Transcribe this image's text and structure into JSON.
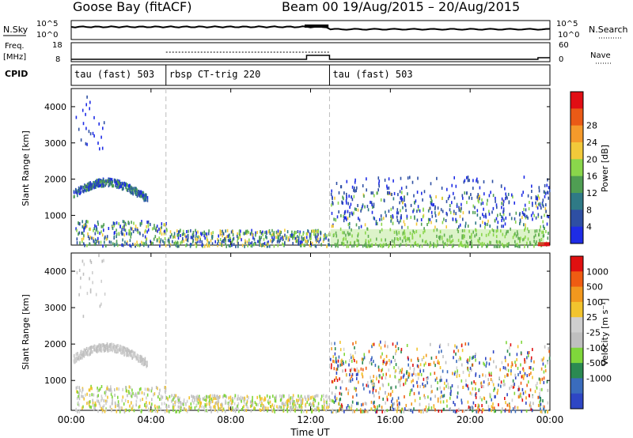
{
  "header": {
    "title": "Goose Bay (fitACF)",
    "beam_date": "Beam 00  19/Aug/2015 – 20/Aug/2015"
  },
  "top_panels": {
    "nsky_label": "N.Sky",
    "nsky_ticks": [
      "10^5",
      "10^0"
    ],
    "nsky_right_ticks": [
      "10^5",
      "10^0"
    ],
    "nsearch_label": "N.Search",
    "freq_label_1": "Freq.",
    "freq_label_2": "[MHz]",
    "freq_ticks": [
      "18",
      "8"
    ],
    "nave_ticks": [
      "60",
      "0"
    ],
    "nave_label": "Nave",
    "cpid_label": "CPID",
    "cpid_segments": [
      {
        "label": "tau (fast) 503",
        "start_hour": 0.0
      },
      {
        "label": "rbsp CT-trig 220",
        "start_hour": 4.75
      },
      {
        "label": "tau (fast) 503",
        "start_hour": 12.95
      }
    ]
  },
  "colors": {
    "power_scale": [
      "#1e2ce6",
      "#2e4fa3",
      "#2f7a86",
      "#4f9e53",
      "#8ad64b",
      "#f2c93a",
      "#f59a2b",
      "#ea5a16",
      "#e10e14"
    ],
    "velocity_scale": [
      "#2e46c4",
      "#3a6cbd",
      "#2b8a52",
      "#7fd63b",
      "#bfbfbf",
      "#cfcfcf",
      "#f2c42e",
      "#f2981e",
      "#ef5c12",
      "#e01010"
    ]
  },
  "chart_data": [
    {
      "type": "heatmap",
      "name": "power",
      "xlabel": "",
      "ylabel": "Slant Range [km]",
      "xlim": [
        0,
        24
      ],
      "ylim": [
        180,
        4500
      ],
      "x_ticks": [
        "00:00",
        "04:00",
        "08:00",
        "12:00",
        "16:00",
        "20:00",
        "00:00"
      ],
      "y_ticks": [
        1000,
        2000,
        3000,
        4000
      ],
      "colorbar_label": "Power [dB]",
      "colorbar_ticks": [
        "4",
        "8",
        "12",
        "16",
        "20",
        "24",
        "28"
      ]
    },
    {
      "type": "heatmap",
      "name": "velocity",
      "xlabel": "Time UT",
      "ylabel": "Slant Range [km]",
      "xlim": [
        0,
        24
      ],
      "ylim": [
        180,
        4500
      ],
      "x_ticks": [
        "00:00",
        "04:00",
        "08:00",
        "12:00",
        "16:00",
        "20:00",
        "00:00"
      ],
      "y_ticks": [
        1000,
        2000,
        3000,
        4000
      ],
      "colorbar_label": "Velocity [m s⁻¹]",
      "colorbar_ticks": [
        "1000",
        "500",
        "100",
        "25",
        "-25",
        "-100",
        "-500",
        "-1000"
      ]
    }
  ]
}
